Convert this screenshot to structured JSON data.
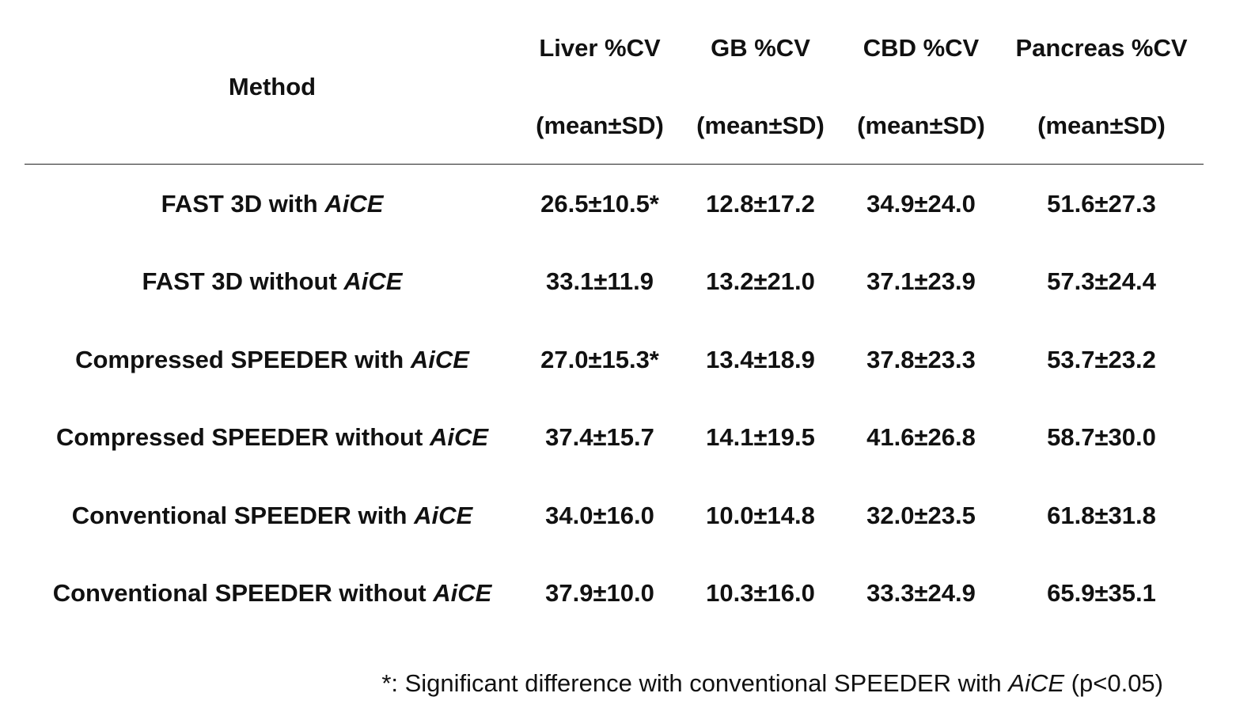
{
  "table": {
    "header": {
      "method": "Method",
      "columns": [
        {
          "name": "Liver %CV",
          "sub": "(mean±SD)"
        },
        {
          "name": "GB %CV",
          "sub": "(mean±SD)"
        },
        {
          "name": "CBD %CV",
          "sub": "(mean±SD)"
        },
        {
          "name": "Pancreas %CV",
          "sub": "(mean±SD)"
        }
      ]
    },
    "rows": [
      {
        "method": "FAST 3D with",
        "method_italic": "AiCE",
        "values": [
          "26.5±10.5*",
          "12.8±17.2",
          "34.9±24.0",
          "51.6±27.3"
        ]
      },
      {
        "method": "FAST 3D without",
        "method_italic": "AiCE",
        "values": [
          "33.1±11.9",
          "13.2±21.0",
          "37.1±23.9",
          "57.3±24.4"
        ]
      },
      {
        "method": "Compressed SPEEDER with",
        "method_italic": "AiCE",
        "values": [
          "27.0±15.3*",
          "13.4±18.9",
          "37.8±23.3",
          "53.7±23.2"
        ]
      },
      {
        "method": "Compressed SPEEDER without",
        "method_italic": "AiCE",
        "values": [
          "37.4±15.7",
          "14.1±19.5",
          "41.6±26.8",
          "58.7±30.0"
        ]
      },
      {
        "method": "Conventional SPEEDER with",
        "method_italic": "AiCE",
        "values": [
          "34.0±16.0",
          "10.0±14.8",
          "32.0±23.5",
          "61.8±31.8"
        ]
      },
      {
        "method": "Conventional SPEEDER without",
        "method_italic": "AiCE",
        "values": [
          "37.9±10.0",
          "10.3±16.0",
          "33.3±24.9",
          "65.9±35.1"
        ]
      }
    ]
  },
  "footnote": {
    "prefix": "*: Significant difference with conventional SPEEDER with",
    "italic": "AiCE",
    "suffix": "(p<0.05)"
  }
}
